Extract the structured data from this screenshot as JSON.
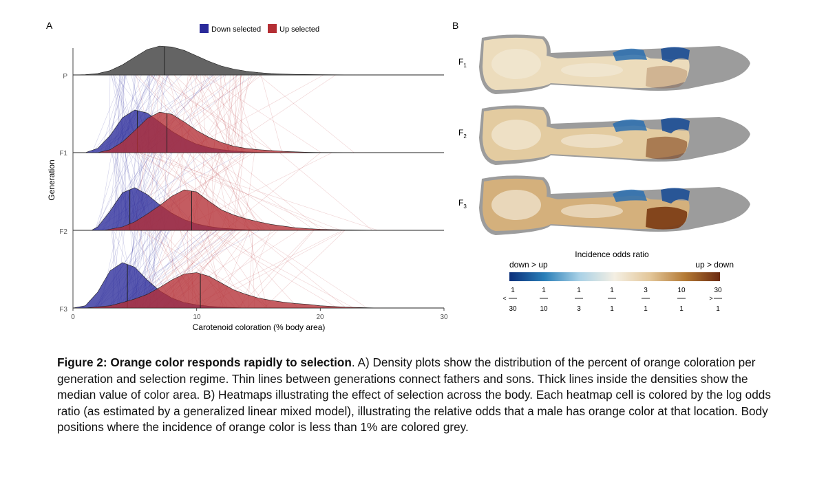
{
  "panel_a": {
    "label": "A",
    "legend": {
      "down": {
        "label": "Down selected",
        "color": "#2a2a9a"
      },
      "up": {
        "label": "Up selected",
        "color": "#b42e34"
      }
    },
    "parent_color": "#5c5c5c",
    "chart_data": {
      "type": "ridgeline-density",
      "title": "",
      "xlabel": "Carotenoid coloration (% body area)",
      "ylabel": "Generation",
      "xlim": [
        0,
        30
      ],
      "xticks": [
        "0",
        "10",
        "20",
        "30"
      ],
      "generations": [
        "P",
        "F1",
        "F2",
        "F3"
      ],
      "series": [
        {
          "generation": "P",
          "regime": "parent",
          "median": 7.4,
          "density_x": [
            0,
            1,
            2,
            3,
            4,
            5,
            6,
            7,
            8,
            9,
            10,
            11,
            12,
            13,
            14,
            15,
            16,
            17,
            18,
            20,
            22,
            23.5
          ],
          "density_y": [
            0,
            0.01,
            0.05,
            0.15,
            0.35,
            0.62,
            0.88,
            1.0,
            0.97,
            0.85,
            0.66,
            0.47,
            0.31,
            0.2,
            0.13,
            0.08,
            0.05,
            0.03,
            0.02,
            0.01,
            0.005,
            0
          ]
        },
        {
          "generation": "F1",
          "regime": "down",
          "median": 5.2,
          "density_x": [
            1,
            2,
            3,
            4,
            5,
            6,
            7,
            8,
            9,
            10,
            11,
            12,
            13,
            14,
            15,
            16
          ],
          "density_y": [
            0,
            0.1,
            0.4,
            0.82,
            1.0,
            0.93,
            0.72,
            0.5,
            0.33,
            0.2,
            0.12,
            0.07,
            0.04,
            0.02,
            0.01,
            0
          ]
        },
        {
          "generation": "F1",
          "regime": "up",
          "median": 7.6,
          "density_x": [
            2,
            3,
            4,
            5,
            6,
            7,
            8,
            9,
            10,
            11,
            12,
            13,
            14,
            15,
            16,
            17,
            18,
            19,
            20,
            22,
            24
          ],
          "density_y": [
            0,
            0.07,
            0.25,
            0.52,
            0.8,
            0.95,
            0.9,
            0.72,
            0.52,
            0.36,
            0.24,
            0.15,
            0.1,
            0.07,
            0.05,
            0.03,
            0.02,
            0.01,
            0.005,
            0.003,
            0
          ]
        },
        {
          "generation": "F2",
          "regime": "down",
          "median": 4.6,
          "density_x": [
            1.5,
            2,
            3,
            4,
            5,
            6,
            7,
            8,
            9,
            10,
            11,
            12,
            13,
            14,
            15,
            16
          ],
          "density_y": [
            0,
            0.08,
            0.45,
            0.88,
            1.0,
            0.84,
            0.6,
            0.4,
            0.25,
            0.15,
            0.09,
            0.05,
            0.03,
            0.015,
            0.007,
            0
          ]
        },
        {
          "generation": "F2",
          "regime": "up",
          "median": 9.6,
          "density_x": [
            2.5,
            4,
            5,
            6,
            7,
            8,
            9,
            10,
            11,
            12,
            13,
            14,
            15,
            16,
            17,
            18,
            19,
            20,
            22,
            24,
            26
          ],
          "density_y": [
            0,
            0.08,
            0.2,
            0.38,
            0.58,
            0.8,
            0.95,
            0.9,
            0.68,
            0.48,
            0.36,
            0.27,
            0.2,
            0.14,
            0.1,
            0.06,
            0.04,
            0.025,
            0.01,
            0.004,
            0
          ]
        },
        {
          "generation": "F3",
          "regime": "down",
          "median": 4.4,
          "density_x": [
            0,
            1,
            2,
            3,
            4,
            5,
            6,
            7,
            8,
            9,
            10,
            11,
            12,
            13,
            14
          ],
          "density_y": [
            0,
            0.05,
            0.35,
            0.82,
            1.0,
            0.9,
            0.62,
            0.38,
            0.22,
            0.12,
            0.07,
            0.04,
            0.02,
            0.01,
            0
          ]
        },
        {
          "generation": "F3",
          "regime": "up",
          "median": 10.3,
          "density_x": [
            1,
            3,
            4,
            5,
            6,
            7,
            8,
            9,
            10,
            11,
            12,
            13,
            14,
            15,
            16,
            17,
            18,
            19,
            20,
            22,
            24,
            25
          ],
          "density_y": [
            0,
            0.05,
            0.12,
            0.2,
            0.3,
            0.45,
            0.62,
            0.75,
            0.78,
            0.7,
            0.55,
            0.4,
            0.3,
            0.22,
            0.17,
            0.13,
            0.1,
            0.08,
            0.05,
            0.02,
            0.005,
            0
          ]
        }
      ]
    }
  },
  "panel_b": {
    "label": "B",
    "rows": [
      {
        "gen_letter": "F",
        "gen_sub": "1"
      },
      {
        "gen_letter": "F",
        "gen_sub": "2"
      },
      {
        "gen_letter": "F",
        "gen_sub": "3"
      }
    ],
    "colorbar": {
      "title": "Incidence odds ratio",
      "left_label": "down > up",
      "right_label": "up > down",
      "ticks": [
        {
          "num": "1",
          "den": "30",
          "prefix": "<"
        },
        {
          "num": "1",
          "den": "10",
          "prefix": ""
        },
        {
          "num": "1",
          "den": "3",
          "prefix": ""
        },
        {
          "num": "1",
          "den": "1",
          "prefix": ""
        },
        {
          "num": "3",
          "den": "1",
          "prefix": ""
        },
        {
          "num": "10",
          "den": "1",
          "prefix": ""
        },
        {
          "num": "30",
          "den": "1",
          "prefix": ">"
        }
      ],
      "gradient": [
        "#0b2f7a",
        "#2a7fb8",
        "#a9d1e6",
        "#f4efe3",
        "#e3c79a",
        "#b47a35",
        "#6b2a10"
      ]
    }
  },
  "caption": {
    "title": "Figure 2: Orange color responds rapidly to selection",
    "body": ". A) Density plots show the distribution of the percent of orange coloration per generation and selection regime. Thin lines between generations connect fathers and sons. Thick lines inside the densities show the median value of color area. B) Heatmaps illustrating the effect of selection across the body. Each heatmap cell is colored by the log odds ratio (as estimated by a generalized linear mixed model), illustrating the relative odds that a male has orange color at that location. Body positions where the incidence of orange color is less than 1% are colored grey."
  }
}
